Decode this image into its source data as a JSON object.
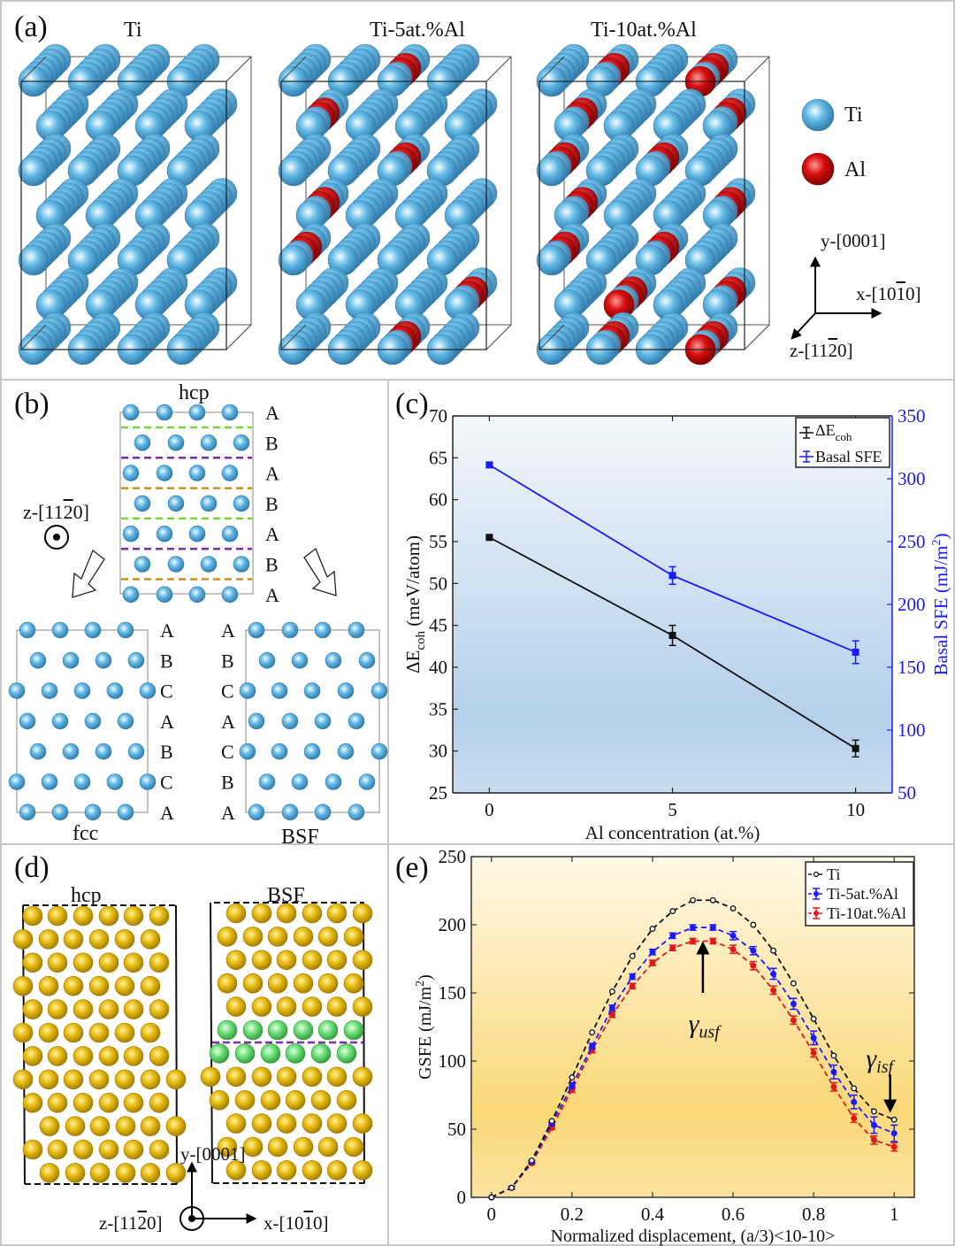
{
  "panels": {
    "a": {
      "label": "(a)",
      "titles": [
        "Ti",
        "Ti-5at.%Al",
        "Ti-10at.%Al"
      ],
      "legend": [
        {
          "name": "Ti",
          "color": "#5aaee0"
        },
        {
          "name": "Al",
          "color": "#d81010"
        }
      ],
      "axes": {
        "y": "y-[0001]",
        "x": "x-[10",
        "x_bar": "1",
        "x_end": "0]",
        "z": "z-[11",
        "z_bar": "2",
        "z_end": "0]"
      }
    },
    "b": {
      "label": "(b)",
      "hcp_title": "hcp",
      "fcc_title": "fcc",
      "bsf_title": "BSF",
      "view_axis": {
        "text": "z-[11",
        "bar": "2",
        "end": "0]"
      },
      "hcp_stack": [
        "A",
        "B",
        "A",
        "B",
        "A",
        "B",
        "A"
      ],
      "fcc_stack": [
        "A",
        "B",
        "C",
        "A",
        "B",
        "C",
        "A"
      ],
      "bsf_stack": [
        "A",
        "B",
        "C",
        "A",
        "C",
        "B",
        "A"
      ],
      "dash_colors": [
        "#7cd23a",
        "#7b2fa8",
        "#c89020",
        "#7cd23a",
        "#7b2fa8",
        "#c89020"
      ]
    },
    "d": {
      "label": "(d)",
      "hcp_title": "hcp",
      "bsf_title": "BSF",
      "axes": {
        "y": "y-[0001]",
        "x": "x-[10",
        "x_bar": "1",
        "x_end": "0]",
        "z": "z-[11",
        "z_bar": "2",
        "z_end": "0]"
      }
    }
  },
  "chart_data": [
    {
      "id": "c",
      "panel_label": "(c)",
      "type": "line",
      "xlabel": "Al concentration (at.%)",
      "ylabel": "ΔE",
      "ylabel_sub": "coh",
      "ylabel_unit": " (meV/atom)",
      "y2label": "Basal SFE (mJ/m",
      "y2label_sup": "2",
      "y2label_end": ")",
      "x": [
        0,
        5,
        10
      ],
      "xticks": [
        0,
        5,
        10
      ],
      "xlim": [
        -1,
        11
      ],
      "ylim": [
        25,
        70
      ],
      "yticks": [
        25,
        30,
        35,
        40,
        45,
        50,
        55,
        60,
        65,
        70
      ],
      "y2lim": [
        50,
        350
      ],
      "y2ticks": [
        50,
        100,
        150,
        200,
        250,
        300,
        350
      ],
      "grid": false,
      "legend_position": "top-right",
      "series": [
        {
          "name": "ΔE",
          "name_sub": "coh",
          "axis": "left",
          "color": "#111111",
          "values": [
            55.5,
            43.8,
            30.3
          ],
          "errors": [
            0.2,
            1.2,
            1.0
          ]
        },
        {
          "name": "Basal SFE",
          "axis": "right",
          "color": "#1a1aff",
          "values": [
            311,
            223,
            162
          ],
          "errors": [
            2,
            7,
            9
          ]
        }
      ]
    },
    {
      "id": "e",
      "panel_label": "(e)",
      "type": "line",
      "xlabel": "Normalized displacement, (a/3)<10-10>",
      "ylabel": "GSFE (mJ/m",
      "ylabel_sup": "2",
      "ylabel_end": ")",
      "xlim": [
        -0.05,
        1.05
      ],
      "xticks": [
        0,
        0.2,
        0.4,
        0.6,
        0.8,
        1
      ],
      "ylim": [
        0,
        250
      ],
      "yticks": [
        0,
        50,
        100,
        150,
        200,
        250
      ],
      "grid": false,
      "legend_position": "top-right",
      "annotations": [
        {
          "text": "γ",
          "sub": "usf",
          "x": 0.525,
          "y": 125
        },
        {
          "text": "γ",
          "sub": "isf",
          "x": 0.99,
          "y": 98
        }
      ],
      "x": [
        0,
        0.05,
        0.1,
        0.15,
        0.2,
        0.25,
        0.3,
        0.35,
        0.4,
        0.45,
        0.5,
        0.55,
        0.6,
        0.65,
        0.7,
        0.75,
        0.8,
        0.85,
        0.9,
        0.95,
        1.0
      ],
      "series": [
        {
          "name": "Ti",
          "color": "#111111",
          "marker": "open-circle",
          "values": [
            0,
            7,
            27,
            56,
            88,
            121,
            151,
            177,
            197,
            210,
            218,
            218,
            212,
            200,
            181,
            157,
            131,
            104,
            80,
            63,
            57
          ],
          "errors": null
        },
        {
          "name": "Ti-5at.%Al",
          "color": "#1a1aff",
          "marker": "dot",
          "values": [
            0,
            7,
            26,
            54,
            82,
            111,
            139,
            162,
            180,
            192,
            198,
            198,
            192,
            181,
            164,
            142,
            117,
            92,
            70,
            53,
            47
          ],
          "errors": [
            0,
            1,
            1,
            1,
            2,
            2,
            2,
            2,
            2,
            2,
            2,
            2,
            3,
            3,
            4,
            4,
            5,
            5,
            5,
            6,
            6
          ]
        },
        {
          "name": "Ti-10at.%Al",
          "color": "#e01818",
          "marker": "dot",
          "values": [
            0,
            7,
            25,
            51,
            79,
            108,
            134,
            155,
            172,
            183,
            188,
            188,
            182,
            170,
            152,
            130,
            106,
            81,
            58,
            42,
            37
          ],
          "errors": [
            0,
            1,
            1,
            1,
            2,
            2,
            2,
            2,
            2,
            2,
            2,
            2,
            3,
            3,
            3,
            3,
            3,
            3,
            3,
            3,
            3
          ]
        }
      ]
    }
  ]
}
